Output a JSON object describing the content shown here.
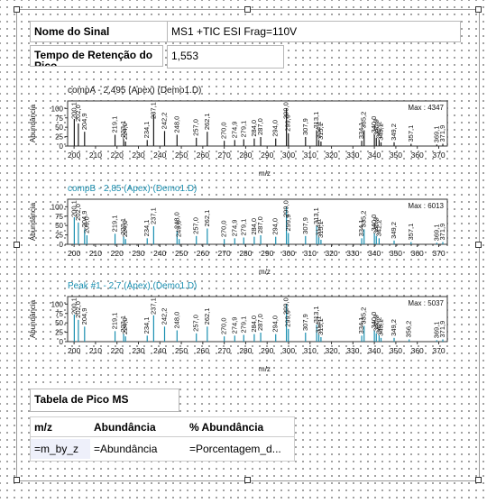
{
  "signal": {
    "name_label": "Nome do Sinal",
    "name_value": "MS1  +TIC ESI Frag=110V",
    "rt_label": "Tempo de Retenção do Pico",
    "rt_value": "1,553"
  },
  "chart_data": [
    {
      "type": "bar",
      "title": "compA - 2,495 (Apex)  (Demo1.D)",
      "max_label": "Max : 4347",
      "xlabel": "m/z",
      "ylabel": "Abundância",
      "xlim": [
        197,
        374
      ],
      "ylim": [
        0,
        120
      ],
      "xticks": [
        200,
        210,
        220,
        230,
        240,
        250,
        260,
        270,
        280,
        290,
        300,
        310,
        320,
        330,
        340,
        350,
        360,
        370
      ],
      "yticks": [
        0,
        25,
        50,
        75,
        100
      ],
      "peaks": [
        {
          "x": 200.1,
          "y": 72,
          "label": "200,1"
        },
        {
          "x": 202.0,
          "y": 60,
          "label": "202,0"
        },
        {
          "x": 204.9,
          "y": 38,
          "label": "204,9"
        },
        {
          "x": 219.1,
          "y": 30,
          "label": "219,1"
        },
        {
          "x": 223.1,
          "y": 18,
          "label": "223,1"
        },
        {
          "x": 224.0,
          "y": 12,
          "label": "224,0"
        },
        {
          "x": 234.1,
          "y": 16,
          "label": "234,1"
        },
        {
          "x": 237.1,
          "y": 85,
          "label": "237,1"
        },
        {
          "x": 242.2,
          "y": 40,
          "label": "242,2"
        },
        {
          "x": 248.0,
          "y": 30,
          "label": "248,0"
        },
        {
          "x": 257.0,
          "y": 22,
          "label": "257,0"
        },
        {
          "x": 262.1,
          "y": 38,
          "label": "262,1"
        },
        {
          "x": 270.0,
          "y": 14,
          "label": "270,0"
        },
        {
          "x": 274.9,
          "y": 16,
          "label": "274,9"
        },
        {
          "x": 279.1,
          "y": 18,
          "label": "279,1"
        },
        {
          "x": 284.0,
          "y": 20,
          "label": "284,0"
        },
        {
          "x": 287.0,
          "y": 24,
          "label": "287,0"
        },
        {
          "x": 294.0,
          "y": 20,
          "label": "294,0"
        },
        {
          "x": 299.0,
          "y": 100,
          "label": "299,0"
        },
        {
          "x": 299.9,
          "y": 34,
          "label": "299,9"
        },
        {
          "x": 307.9,
          "y": 24,
          "label": "307,9"
        },
        {
          "x": 313.1,
          "y": 42,
          "label": "313,1"
        },
        {
          "x": 314.1,
          "y": 16,
          "label": "314,1"
        },
        {
          "x": 315.1,
          "y": 12,
          "label": "315,1"
        },
        {
          "x": 334.1,
          "y": 14,
          "label": "334,1"
        },
        {
          "x": 335.2,
          "y": 42,
          "label": "335,2"
        },
        {
          "x": 340.0,
          "y": 30,
          "label": "340,0"
        },
        {
          "x": 340.9,
          "y": 22,
          "label": "340,9"
        },
        {
          "x": 342.2,
          "y": 16,
          "label": "342,2"
        },
        {
          "x": 343.1,
          "y": 10,
          "label": "343,1"
        },
        {
          "x": 349.2,
          "y": 10,
          "label": "349,2"
        },
        {
          "x": 357.1,
          "y": 6,
          "label": "357,1"
        },
        {
          "x": 369.1,
          "y": 4,
          "label": "369,1"
        },
        {
          "x": 371.9,
          "y": 6,
          "label": "371,9"
        }
      ],
      "color": "#1a1a1a"
    },
    {
      "type": "bar",
      "title": "compB - 2,85 (Apex)  (Demo1.D)",
      "max_label": "Max : 6013",
      "xlabel": "m/z",
      "ylabel": "Abundância",
      "xlim": [
        197,
        374
      ],
      "ylim": [
        0,
        120
      ],
      "xticks": [
        200,
        210,
        220,
        230,
        240,
        250,
        260,
        270,
        280,
        290,
        300,
        310,
        320,
        330,
        340,
        350,
        360,
        370
      ],
      "yticks": [
        0,
        25,
        50,
        75,
        100
      ],
      "peaks": [
        {
          "x": 200.1,
          "y": 72,
          "label": "200,1"
        },
        {
          "x": 202.0,
          "y": 58,
          "label": "202,0"
        },
        {
          "x": 204.9,
          "y": 40,
          "label": "204,9"
        },
        {
          "x": 206.0,
          "y": 24,
          "label": "206,0"
        },
        {
          "x": 219.1,
          "y": 28,
          "label": "219,1"
        },
        {
          "x": 223.1,
          "y": 20,
          "label": "223,1"
        },
        {
          "x": 224.0,
          "y": 14,
          "label": "224,0"
        },
        {
          "x": 234.1,
          "y": 16,
          "label": "234,1"
        },
        {
          "x": 237.1,
          "y": 48,
          "label": "237,1"
        },
        {
          "x": 248.0,
          "y": 36,
          "label": "248,0"
        },
        {
          "x": 249.0,
          "y": 14,
          "label": "249,0"
        },
        {
          "x": 257.0,
          "y": 22,
          "label": "257,0"
        },
        {
          "x": 262.1,
          "y": 42,
          "label": "262,1"
        },
        {
          "x": 270.0,
          "y": 14,
          "label": "270,0"
        },
        {
          "x": 274.9,
          "y": 16,
          "label": "274,9"
        },
        {
          "x": 279.1,
          "y": 18,
          "label": "279,1"
        },
        {
          "x": 284.0,
          "y": 20,
          "label": "284,0"
        },
        {
          "x": 287.0,
          "y": 24,
          "label": "287,0"
        },
        {
          "x": 294.0,
          "y": 20,
          "label": "294,0"
        },
        {
          "x": 299.0,
          "y": 100,
          "label": "299,0"
        },
        {
          "x": 299.9,
          "y": 30,
          "label": "299,9"
        },
        {
          "x": 307.9,
          "y": 22,
          "label": "307,9"
        },
        {
          "x": 313.1,
          "y": 48,
          "label": "313,1"
        },
        {
          "x": 314.1,
          "y": 18,
          "label": "314,1"
        },
        {
          "x": 315.1,
          "y": 12,
          "label": "315,1"
        },
        {
          "x": 334.1,
          "y": 16,
          "label": "334,1"
        },
        {
          "x": 335.2,
          "y": 40,
          "label": "335,2"
        },
        {
          "x": 340.0,
          "y": 30,
          "label": "340,0"
        },
        {
          "x": 340.9,
          "y": 22,
          "label": "340,9"
        },
        {
          "x": 342.2,
          "y": 16,
          "label": "342,2"
        },
        {
          "x": 349.2,
          "y": 10,
          "label": "349,2"
        },
        {
          "x": 357.1,
          "y": 6,
          "label": "357,1"
        },
        {
          "x": 369.1,
          "y": 4,
          "label": "369,1"
        },
        {
          "x": 371.9,
          "y": 6,
          "label": "371,9"
        }
      ],
      "color": "#1a8fb0"
    },
    {
      "type": "bar",
      "title": "Peak #1 - 2,7 (Apex)  (Demo1.D)",
      "max_label": "Max : 5037",
      "xlabel": "m/z",
      "ylabel": "Abundância",
      "xlim": [
        197,
        374
      ],
      "ylim": [
        0,
        120
      ],
      "xticks": [
        200,
        210,
        220,
        230,
        240,
        250,
        260,
        270,
        280,
        290,
        300,
        310,
        320,
        330,
        340,
        350,
        360,
        370
      ],
      "yticks": [
        0,
        25,
        50,
        75,
        100
      ],
      "peaks": [
        {
          "x": 200.1,
          "y": 72,
          "label": "200,1"
        },
        {
          "x": 202.0,
          "y": 58,
          "label": "202,0"
        },
        {
          "x": 204.9,
          "y": 40,
          "label": "204,9"
        },
        {
          "x": 219.1,
          "y": 28,
          "label": "219,1"
        },
        {
          "x": 223.1,
          "y": 20,
          "label": "223,1"
        },
        {
          "x": 224.0,
          "y": 14,
          "label": "224,0"
        },
        {
          "x": 234.1,
          "y": 16,
          "label": "234,1"
        },
        {
          "x": 237.1,
          "y": 70,
          "label": "237,1"
        },
        {
          "x": 242.2,
          "y": 40,
          "label": "242,2"
        },
        {
          "x": 248.0,
          "y": 30,
          "label": "248,0"
        },
        {
          "x": 257.0,
          "y": 22,
          "label": "257,0"
        },
        {
          "x": 262.1,
          "y": 40,
          "label": "262,1"
        },
        {
          "x": 270.0,
          "y": 14,
          "label": "270,0"
        },
        {
          "x": 274.9,
          "y": 16,
          "label": "274,9"
        },
        {
          "x": 279.1,
          "y": 18,
          "label": "279,1"
        },
        {
          "x": 284.0,
          "y": 20,
          "label": "284,0"
        },
        {
          "x": 287.0,
          "y": 24,
          "label": "287,0"
        },
        {
          "x": 294.0,
          "y": 20,
          "label": "294,0"
        },
        {
          "x": 299.0,
          "y": 100,
          "label": "299,0"
        },
        {
          "x": 299.9,
          "y": 34,
          "label": "299,9"
        },
        {
          "x": 307.9,
          "y": 24,
          "label": "307,9"
        },
        {
          "x": 313.1,
          "y": 45,
          "label": "313,1"
        },
        {
          "x": 314.1,
          "y": 18,
          "label": "314,1"
        },
        {
          "x": 315.1,
          "y": 12,
          "label": "315,1"
        },
        {
          "x": 334.1,
          "y": 16,
          "label": "334,1"
        },
        {
          "x": 335.2,
          "y": 42,
          "label": "335,2"
        },
        {
          "x": 340.0,
          "y": 30,
          "label": "340,0"
        },
        {
          "x": 340.9,
          "y": 22,
          "label": "340,9"
        },
        {
          "x": 342.2,
          "y": 16,
          "label": "342,2"
        },
        {
          "x": 343.1,
          "y": 10,
          "label": "343,1"
        },
        {
          "x": 349.2,
          "y": 10,
          "label": "349,2"
        },
        {
          "x": 356.2,
          "y": 6,
          "label": "356,2"
        },
        {
          "x": 369.1,
          "y": 4,
          "label": "369,1"
        },
        {
          "x": 371.9,
          "y": 6,
          "label": "371,9"
        }
      ],
      "color": "#1a8fb0"
    }
  ],
  "table": {
    "title": "Tabela de Pico MS",
    "headers": [
      "m/z",
      "Abundância",
      "% Abundância"
    ],
    "row": [
      "=m_by_z",
      "=Abundância",
      "=Porcentagem_d..."
    ]
  }
}
